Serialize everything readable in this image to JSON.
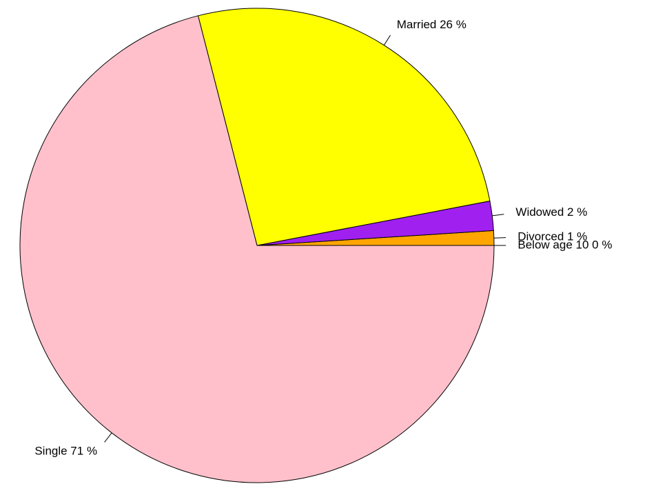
{
  "chart_data": {
    "type": "pie",
    "values": [
      0,
      1,
      2,
      26,
      71
    ],
    "value_labels": [
      "Below age 10 0 %",
      "Divorced 1 %",
      "Widowed 2 %",
      "Married 26 %",
      "Single 71 %"
    ],
    "colors": [
      "#ff0000",
      "#ffa500",
      "#a020f0",
      "#ffff00",
      "#ffc0cb"
    ],
    "start_angle": 0,
    "direction": "counterclockwise"
  }
}
